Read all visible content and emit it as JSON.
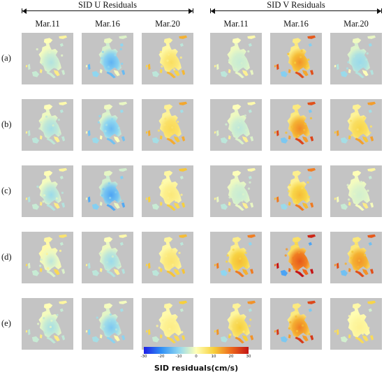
{
  "group_headers": [
    {
      "label": "SID U Residuals"
    },
    {
      "label": "SID V Residuals"
    }
  ],
  "column_labels": [
    "Mar.11",
    "Mar.16",
    "Mar.20",
    "Mar.11",
    "Mar.16",
    "Mar.20"
  ],
  "row_labels": [
    "(a)",
    "(b)",
    "(c)",
    "(d)",
    "(e)"
  ],
  "colorbar": {
    "label": "SID residuals(cm/s)",
    "min": -30,
    "max": 30,
    "ticks": [
      "-30",
      "-20",
      "-10",
      "0",
      "10",
      "20",
      "30"
    ],
    "colormap": "jet",
    "colors": [
      "#1e1ee6",
      "#2f8ff5",
      "#8fd6f0",
      "#ffffb8",
      "#f7d03c",
      "#ee6a1c",
      "#c41414"
    ]
  },
  "background_color": "#c4c4c4",
  "panels": [
    [
      {
        "mean": -2,
        "anom": -7
      },
      {
        "mean": -7,
        "anom": -15
      },
      {
        "mean": 3,
        "anom": 7
      }
    ],
    [
      {
        "mean": -3,
        "anom": -8
      },
      {
        "mean": -6,
        "anom": -14
      },
      {
        "mean": 5,
        "anom": 8
      }
    ],
    [
      {
        "mean": -2,
        "anom": -9
      },
      {
        "mean": -8,
        "anom": -17
      },
      {
        "mean": 2,
        "anom": 5
      }
    ],
    [
      {
        "mean": 2,
        "anom": -6
      },
      {
        "mean": -3,
        "anom": -9
      },
      {
        "mean": 3,
        "anom": 6
      }
    ],
    [
      {
        "mean": -2,
        "anom": -8
      },
      {
        "mean": -5,
        "anom": -12
      },
      {
        "mean": 2,
        "anom": 4
      }
    ],
    [
      {
        "mean": -3,
        "anom": -5
      },
      {
        "mean": 8,
        "anom": 16
      },
      {
        "mean": -6,
        "anom": -9
      }
    ],
    [
      {
        "mean": -3,
        "anom": -6
      },
      {
        "mean": 9,
        "anom": 17
      },
      {
        "mean": 5,
        "anom": 9
      }
    ],
    [
      {
        "mean": -3,
        "anom": -5
      },
      {
        "mean": 6,
        "anom": 12
      },
      {
        "mean": -2,
        "anom": -4
      }
    ],
    [
      {
        "mean": 7,
        "anom": 12
      },
      {
        "mean": 14,
        "anom": 22
      },
      {
        "mean": 10,
        "anom": 16
      }
    ],
    [
      {
        "mean": 4,
        "anom": 10
      },
      {
        "mean": 9,
        "anom": 18
      },
      {
        "mean": 1,
        "anom": 3
      }
    ]
  ]
}
